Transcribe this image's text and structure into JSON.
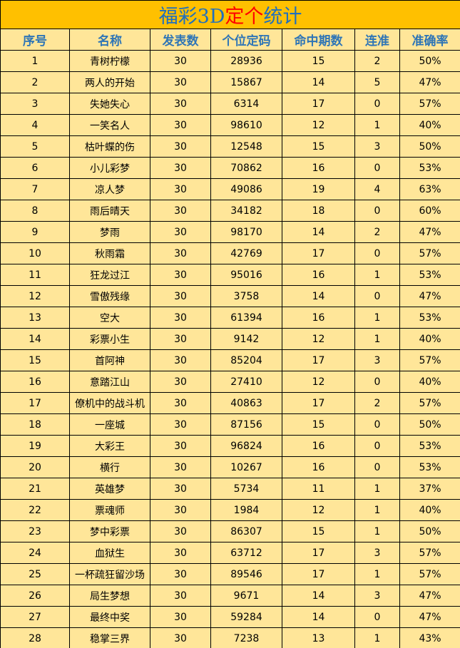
{
  "title": {
    "part1": "福彩3D",
    "part2": "定个",
    "part3": "统计"
  },
  "colors": {
    "title_bg": "#FFC000",
    "cell_bg": "#FFE699",
    "header_text": "#2E75B6",
    "title_blue": "#1F6FBF",
    "title_red": "#FF0000"
  },
  "columns": [
    "序号",
    "名称",
    "发表数",
    "个位定码",
    "命中期数",
    "连准",
    "准确率"
  ],
  "rows": [
    [
      "1",
      "青树柠檬",
      "30",
      "28936",
      "15",
      "2",
      "50%"
    ],
    [
      "2",
      "两人的开始",
      "30",
      "15867",
      "14",
      "5",
      "47%"
    ],
    [
      "3",
      "失她失心",
      "30",
      "6314",
      "17",
      "0",
      "57%"
    ],
    [
      "4",
      "一笑名人",
      "30",
      "98610",
      "12",
      "1",
      "40%"
    ],
    [
      "5",
      "枯叶蝶的伤",
      "30",
      "12548",
      "15",
      "3",
      "50%"
    ],
    [
      "6",
      "小儿彩梦",
      "30",
      "70862",
      "16",
      "0",
      "53%"
    ],
    [
      "7",
      "凉人梦",
      "30",
      "49086",
      "19",
      "4",
      "63%"
    ],
    [
      "8",
      "雨后晴天",
      "30",
      "34182",
      "18",
      "0",
      "60%"
    ],
    [
      "9",
      "梦雨",
      "30",
      "98170",
      "14",
      "2",
      "47%"
    ],
    [
      "10",
      "秋雨霜",
      "30",
      "42769",
      "17",
      "0",
      "57%"
    ],
    [
      "11",
      "狂龙过江",
      "30",
      "95016",
      "16",
      "1",
      "53%"
    ],
    [
      "12",
      "雪傲残缘",
      "30",
      "3758",
      "14",
      "0",
      "47%"
    ],
    [
      "13",
      "空大",
      "30",
      "61394",
      "16",
      "1",
      "53%"
    ],
    [
      "14",
      "彩票小生",
      "30",
      "9142",
      "12",
      "1",
      "40%"
    ],
    [
      "15",
      "首阿神",
      "30",
      "85204",
      "17",
      "3",
      "57%"
    ],
    [
      "16",
      "意踏江山",
      "30",
      "27410",
      "12",
      "0",
      "40%"
    ],
    [
      "17",
      "僚机中的战斗机",
      "30",
      "40863",
      "17",
      "2",
      "57%"
    ],
    [
      "18",
      "一座城",
      "30",
      "87156",
      "15",
      "0",
      "50%"
    ],
    [
      "19",
      "大彩王",
      "30",
      "96824",
      "16",
      "0",
      "53%"
    ],
    [
      "20",
      "横行",
      "30",
      "10267",
      "16",
      "0",
      "53%"
    ],
    [
      "21",
      "英雄梦",
      "30",
      "5734",
      "11",
      "1",
      "37%"
    ],
    [
      "22",
      "票魂师",
      "30",
      "1984",
      "12",
      "1",
      "40%"
    ],
    [
      "23",
      "梦中彩票",
      "30",
      "86307",
      "15",
      "1",
      "50%"
    ],
    [
      "24",
      "血狱生",
      "30",
      "63712",
      "17",
      "3",
      "57%"
    ],
    [
      "25",
      "一杯疏狂留沙场",
      "30",
      "89546",
      "17",
      "1",
      "57%"
    ],
    [
      "26",
      "局生梦想",
      "30",
      "9671",
      "14",
      "3",
      "47%"
    ],
    [
      "27",
      "最终中奖",
      "30",
      "59284",
      "14",
      "0",
      "47%"
    ],
    [
      "28",
      "稳掌三界",
      "30",
      "7238",
      "13",
      "1",
      "43%"
    ]
  ]
}
